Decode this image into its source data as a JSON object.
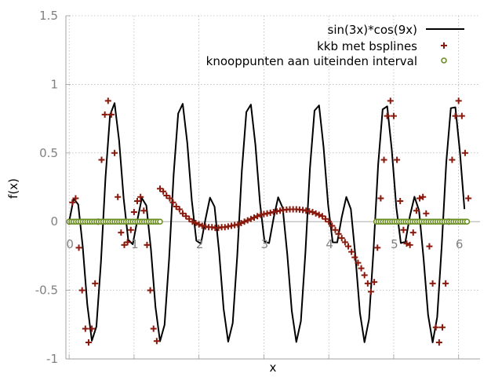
{
  "chart_data": {
    "type": "line",
    "title": "",
    "xlabel": "x",
    "ylabel": "f(x)",
    "xlim": [
      -0.05,
      6.33
    ],
    "ylim": [
      -1,
      1.5
    ],
    "x_ticks": [
      0,
      1,
      2,
      3,
      4,
      5,
      6
    ],
    "x_tick_labels": [
      "0",
      "1",
      "2",
      "3",
      "4",
      "5",
      "6"
    ],
    "y_ticks": [
      -1,
      -0.5,
      0,
      0.5,
      1,
      1.5
    ],
    "y_tick_labels": [
      "-1",
      "-0.5",
      "0",
      "0.5",
      "1",
      "1.5"
    ],
    "grid": true,
    "zero_line": true,
    "legend_position": "top-right",
    "colors": {
      "function": "#000000",
      "approximation": "#8b1a0e",
      "knots_fill": "#ffffff",
      "knots_stroke": "#6b8e23",
      "grid": "#a0a0a0"
    },
    "series": [
      {
        "name": "sin(3x)*cos(9x)",
        "style": "line",
        "function": "sin(3x)*cos(9x)",
        "x_range": [
          0,
          6.15
        ],
        "sample_step": 0.07
      },
      {
        "name": "kkb met bsplines",
        "style": "plus",
        "x": [
          0.0,
          0.05,
          0.1,
          0.15,
          0.2,
          0.25,
          0.3,
          0.35,
          0.4,
          0.45,
          0.5,
          0.55,
          0.6,
          0.65,
          0.7,
          0.75,
          0.8,
          0.85,
          0.9,
          0.95,
          1.0,
          1.05,
          1.1,
          1.15,
          1.2,
          1.25,
          1.3,
          1.35,
          1.4,
          1.45,
          1.5,
          1.55,
          1.6,
          1.65,
          1.7,
          1.75,
          1.8,
          1.85,
          1.9,
          1.95,
          2.0,
          2.05,
          2.1,
          2.15,
          2.2,
          2.25,
          2.3,
          2.35,
          2.4,
          2.45,
          2.5,
          2.55,
          2.6,
          2.65,
          2.7,
          2.75,
          2.8,
          2.85,
          2.9,
          2.95,
          3.0,
          3.05,
          3.1,
          3.15,
          3.2,
          3.25,
          3.3,
          3.35,
          3.4,
          3.45,
          3.5,
          3.55,
          3.6,
          3.65,
          3.7,
          3.75,
          3.8,
          3.85,
          3.9,
          3.95,
          4.0,
          4.05,
          4.1,
          4.15,
          4.2,
          4.25,
          4.3,
          4.35,
          4.4,
          4.45,
          4.5,
          4.55,
          4.6,
          4.65,
          4.7,
          4.75,
          4.8,
          4.85,
          4.9,
          4.95,
          5.0,
          5.05,
          5.1,
          5.15,
          5.2,
          5.25,
          5.3,
          5.35,
          5.4,
          5.45,
          5.5,
          5.55,
          5.6,
          5.65,
          5.7,
          5.75,
          5.8,
          5.85,
          5.9,
          5.95,
          6.0,
          6.05,
          6.1,
          6.15
        ],
        "y": [
          0.0,
          0.14,
          0.17,
          -0.19,
          -0.5,
          -0.78,
          -0.88,
          -0.78,
          -0.45,
          0.0,
          0.45,
          0.78,
          0.88,
          0.78,
          0.5,
          0.18,
          -0.08,
          -0.17,
          -0.15,
          -0.06,
          0.07,
          0.15,
          0.18,
          0.08,
          -0.17,
          -0.5,
          -0.78,
          -0.87,
          0.24,
          0.22,
          0.19,
          0.17,
          0.14,
          0.11,
          0.09,
          0.06,
          0.04,
          0.02,
          0.0,
          -0.01,
          -0.02,
          -0.03,
          -0.035,
          -0.04,
          -0.04,
          -0.045,
          -0.045,
          -0.04,
          -0.04,
          -0.035,
          -0.03,
          -0.025,
          -0.02,
          -0.01,
          0.0,
          0.01,
          0.02,
          0.03,
          0.04,
          0.05,
          0.055,
          0.06,
          0.065,
          0.07,
          0.075,
          0.08,
          0.085,
          0.088,
          0.09,
          0.09,
          0.09,
          0.088,
          0.085,
          0.08,
          0.075,
          0.07,
          0.06,
          0.05,
          0.04,
          0.02,
          0.0,
          -0.03,
          -0.06,
          -0.09,
          -0.12,
          -0.15,
          -0.18,
          -0.22,
          -0.26,
          -0.3,
          -0.34,
          -0.39,
          -0.45,
          -0.51,
          -0.44,
          -0.19,
          0.17,
          0.45,
          0.77,
          0.88,
          0.77,
          0.45,
          0.15,
          -0.06,
          -0.16,
          -0.17,
          -0.08,
          0.08,
          0.17,
          0.18,
          0.06,
          -0.18,
          -0.45,
          -0.77,
          -0.88,
          -0.77,
          -0.45,
          0.0,
          0.45,
          0.77,
          0.88,
          0.77,
          0.5,
          0.17
        ]
      },
      {
        "name": "knooppunten aan uiteinden interval",
        "style": "circle",
        "groups": [
          {
            "y": 0,
            "x_from": 0.0,
            "x_to": 1.4,
            "step": 0.035
          },
          {
            "y": 0,
            "x_from": 4.73,
            "x_to": 6.15,
            "step": 0.035
          }
        ]
      }
    ]
  }
}
